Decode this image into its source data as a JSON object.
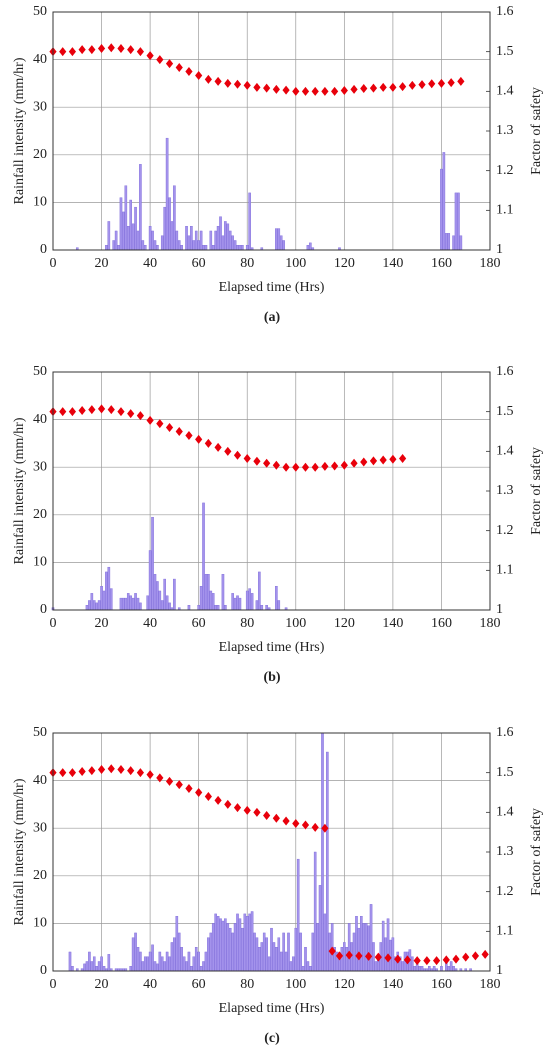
{
  "chart_data": [
    {
      "type": "bar",
      "caption": "(a)",
      "xlabel": "Elapsed time (Hrs)",
      "ylabel": "Rainfall intensity (mm/hr)",
      "y2label": "Factor of safety",
      "xlim": [
        0,
        180
      ],
      "xticks": [
        0,
        20,
        40,
        60,
        80,
        100,
        120,
        140,
        160,
        180
      ],
      "ylim": [
        0,
        50
      ],
      "yticks": [
        0,
        10,
        20,
        30,
        40,
        50
      ],
      "y2lim": [
        1,
        1.6
      ],
      "y2ticks": [
        1,
        1.1,
        1.2,
        1.3,
        1.4,
        1.5,
        1.6
      ],
      "grid": true,
      "series": [
        {
          "type": "bar",
          "color": "#a493ec",
          "x": [
            10,
            22,
            23,
            25,
            26,
            27,
            28,
            29,
            30,
            31,
            32,
            33,
            34,
            35,
            36,
            37,
            38,
            40,
            41,
            42,
            43,
            45,
            46,
            47,
            48,
            49,
            50,
            51,
            52,
            53,
            55,
            56,
            57,
            58,
            59,
            60,
            61,
            62,
            63,
            65,
            66,
            67,
            68,
            69,
            70,
            71,
            72,
            73,
            74,
            75,
            76,
            77,
            78,
            80,
            81,
            82,
            86,
            92,
            93,
            94,
            95,
            105,
            106,
            107,
            118,
            160,
            161,
            162,
            163,
            165,
            166,
            167,
            168
          ],
          "values": [
            0.5,
            1,
            6,
            2,
            4,
            1,
            11,
            8,
            13.5,
            5,
            10.5,
            5.5,
            9,
            4,
            18,
            2,
            1,
            5,
            4,
            2,
            1,
            3,
            9,
            23.5,
            11,
            6,
            13.5,
            4,
            2,
            1,
            5,
            3,
            5,
            2,
            4,
            2,
            4,
            1,
            1,
            4,
            1,
            4,
            5,
            7,
            3,
            6,
            5.5,
            4,
            3,
            2,
            1,
            1,
            1,
            1,
            12,
            0.5,
            0.5,
            4.5,
            4.5,
            3,
            2,
            1,
            1.5,
            0.5,
            0.5,
            17,
            20.5,
            3.5,
            3.5,
            3,
            12,
            12,
            3
          ]
        },
        {
          "type": "scatter",
          "axis": "y2",
          "color": "#e8000b",
          "x": [
            0,
            4,
            8,
            12,
            16,
            20,
            24,
            28,
            32,
            36,
            40,
            44,
            48,
            52,
            56,
            60,
            64,
            68,
            72,
            76,
            80,
            84,
            88,
            92,
            96,
            100,
            104,
            108,
            112,
            116,
            120,
            124,
            128,
            132,
            136,
            140,
            144,
            148,
            152,
            156,
            160,
            164,
            168
          ],
          "values": [
            1.5,
            1.5,
            1.5,
            1.505,
            1.505,
            1.508,
            1.51,
            1.508,
            1.505,
            1.5,
            1.49,
            1.48,
            1.47,
            1.46,
            1.45,
            1.44,
            1.43,
            1.425,
            1.42,
            1.418,
            1.415,
            1.41,
            1.408,
            1.405,
            1.403,
            1.4,
            1.4,
            1.4,
            1.4,
            1.4,
            1.402,
            1.405,
            1.407,
            1.408,
            1.41,
            1.41,
            1.412,
            1.415,
            1.417,
            1.419,
            1.42,
            1.422,
            1.425
          ]
        }
      ]
    },
    {
      "type": "bar",
      "caption": "(b)",
      "xlabel": "Elapsed time (Hrs)",
      "ylabel": "Rainfall intensity (mm/hr)",
      "y2label": "Factor of safety",
      "xlim": [
        0,
        180
      ],
      "xticks": [
        0,
        20,
        40,
        60,
        80,
        100,
        120,
        140,
        160,
        180
      ],
      "ylim": [
        0,
        50
      ],
      "yticks": [
        0,
        10,
        20,
        30,
        40,
        50
      ],
      "y2lim": [
        1,
        1.6
      ],
      "y2ticks": [
        1,
        1.1,
        1.2,
        1.3,
        1.4,
        1.5,
        1.6
      ],
      "grid": true,
      "series": [
        {
          "type": "bar",
          "color": "#a493ec",
          "x": [
            0,
            14,
            15,
            16,
            17,
            18,
            19,
            20,
            21,
            22,
            23,
            24,
            28,
            29,
            30,
            31,
            32,
            33,
            34,
            35,
            36,
            39,
            40,
            41,
            42,
            43,
            44,
            45,
            46,
            47,
            48,
            49,
            50,
            52,
            56,
            60,
            61,
            62,
            63,
            64,
            65,
            66,
            67,
            68,
            70,
            71,
            74,
            75,
            76,
            77,
            80,
            81,
            82,
            84,
            85,
            86,
            88,
            89,
            92,
            93,
            96
          ],
          "values": [
            0.5,
            1,
            2,
            3.5,
            2,
            1.5,
            2,
            5,
            4,
            8,
            9,
            4.5,
            2.5,
            2.5,
            2.5,
            3.5,
            3,
            2.5,
            3.5,
            2.5,
            1.5,
            3,
            12.5,
            19.5,
            7.5,
            6,
            4,
            2,
            6.5,
            3,
            1.5,
            0.5,
            6.5,
            0.5,
            1,
            1,
            5,
            22.5,
            7.5,
            7.5,
            4,
            3.5,
            1,
            1,
            7.5,
            1,
            3.5,
            2.5,
            3,
            2.5,
            4,
            4.5,
            3.5,
            2,
            8,
            1,
            1,
            0.5,
            5,
            2,
            0.5
          ]
        },
        {
          "type": "scatter",
          "axis": "y2",
          "color": "#e8000b",
          "x": [
            0,
            4,
            8,
            12,
            16,
            20,
            24,
            28,
            32,
            36,
            40,
            44,
            48,
            52,
            56,
            60,
            64,
            68,
            72,
            76,
            80,
            84,
            88,
            92,
            96,
            100,
            104,
            108,
            112,
            116,
            120,
            124,
            128,
            132,
            136,
            140,
            144
          ],
          "values": [
            1.5,
            1.5,
            1.5,
            1.503,
            1.505,
            1.507,
            1.505,
            1.5,
            1.495,
            1.49,
            1.478,
            1.47,
            1.46,
            1.45,
            1.44,
            1.43,
            1.42,
            1.41,
            1.4,
            1.39,
            1.382,
            1.375,
            1.37,
            1.365,
            1.36,
            1.36,
            1.36,
            1.36,
            1.362,
            1.363,
            1.365,
            1.37,
            1.373,
            1.376,
            1.378,
            1.38,
            1.382
          ]
        }
      ]
    },
    {
      "type": "bar",
      "caption": "(c)",
      "xlabel": "Elapsed time (Hrs)",
      "ylabel": "Rainfall intensity (mm/hr)",
      "y2label": "Factor of safety",
      "xlim": [
        0,
        180
      ],
      "xticks": [
        0,
        20,
        40,
        60,
        80,
        100,
        120,
        140,
        160,
        180
      ],
      "ylim": [
        0,
        50
      ],
      "yticks": [
        0,
        10,
        20,
        30,
        40,
        50
      ],
      "y2lim": [
        1,
        1.6
      ],
      "y2ticks": [
        1,
        1.1,
        1.2,
        1.3,
        1.4,
        1.5,
        1.6
      ],
      "grid": true,
      "series": [
        {
          "type": "bar",
          "color": "#a493ec",
          "x": [
            7,
            8,
            10,
            12,
            13,
            14,
            15,
            16,
            17,
            18,
            19,
            20,
            21,
            22,
            23,
            24,
            26,
            27,
            28,
            29,
            30,
            32,
            33,
            34,
            35,
            36,
            37,
            38,
            39,
            40,
            41,
            42,
            43,
            44,
            45,
            46,
            47,
            48,
            49,
            50,
            51,
            52,
            53,
            54,
            55,
            56,
            57,
            58,
            59,
            60,
            61,
            62,
            63,
            64,
            65,
            66,
            67,
            68,
            69,
            70,
            71,
            72,
            73,
            74,
            75,
            76,
            77,
            78,
            79,
            80,
            81,
            82,
            83,
            84,
            85,
            86,
            87,
            88,
            89,
            90,
            91,
            92,
            93,
            94,
            95,
            96,
            97,
            98,
            99,
            100,
            101,
            102,
            103,
            104,
            105,
            106,
            107,
            108,
            109,
            110,
            111,
            112,
            113,
            114,
            115,
            116,
            117,
            118,
            119,
            120,
            121,
            122,
            123,
            124,
            125,
            126,
            127,
            128,
            129,
            130,
            131,
            132,
            133,
            134,
            135,
            136,
            137,
            138,
            139,
            140,
            141,
            142,
            143,
            144,
            145,
            146,
            147,
            148,
            149,
            150,
            151,
            152,
            153,
            154,
            155,
            156,
            157,
            158,
            160,
            162,
            163,
            164,
            165,
            166,
            168,
            170,
            172
          ],
          "values": [
            4,
            1,
            0.5,
            0.5,
            1.5,
            2,
            4,
            2,
            3,
            1,
            2,
            3,
            1,
            0.5,
            3.5,
            0.5,
            0.5,
            0.5,
            0.5,
            0.5,
            0.5,
            1,
            7,
            8,
            5,
            4,
            2,
            3,
            3,
            4,
            5.5,
            2,
            1.5,
            4,
            3,
            2,
            4,
            3,
            6,
            7,
            11.5,
            8,
            5,
            3,
            2,
            4,
            1,
            3,
            5,
            4,
            1,
            2,
            4,
            7,
            8,
            10,
            12,
            11.5,
            11,
            10.5,
            11,
            10,
            9,
            8,
            10,
            12,
            11,
            9,
            12,
            11.5,
            12,
            12.5,
            8,
            7,
            5,
            6,
            8,
            7,
            3,
            9,
            6,
            5,
            7,
            4,
            8,
            4,
            8,
            2,
            3,
            9,
            23.5,
            8,
            1,
            5,
            2,
            1,
            8,
            25,
            10,
            18,
            50,
            12,
            46,
            8,
            10,
            5,
            4,
            3,
            5,
            6,
            5,
            10,
            6,
            8,
            11.5,
            9,
            11.5,
            10,
            10,
            9.5,
            14,
            6,
            2,
            3,
            6,
            10.5,
            7,
            11,
            6.5,
            7,
            3,
            4,
            3,
            2,
            4,
            4,
            4.5,
            3,
            1,
            2,
            1,
            1,
            0.5,
            0.5,
            1,
            0.5,
            1,
            0.5,
            1,
            2,
            1,
            2,
            1,
            0.5,
            0.5,
            0.5,
            0.5
          ]
        },
        {
          "type": "scatter",
          "axis": "y2",
          "color": "#e8000b",
          "x": [
            0,
            4,
            8,
            12,
            16,
            20,
            24,
            28,
            32,
            36,
            40,
            44,
            48,
            52,
            56,
            60,
            64,
            68,
            72,
            76,
            80,
            84,
            88,
            92,
            96,
            100,
            104,
            108,
            112,
            115,
            118,
            122,
            126,
            130,
            134,
            138,
            142,
            146,
            150,
            154,
            158,
            162,
            166,
            170,
            174,
            178
          ],
          "values": [
            1.5,
            1.5,
            1.5,
            1.503,
            1.505,
            1.508,
            1.51,
            1.508,
            1.505,
            1.5,
            1.495,
            1.487,
            1.478,
            1.47,
            1.46,
            1.45,
            1.44,
            1.43,
            1.42,
            1.412,
            1.405,
            1.4,
            1.392,
            1.385,
            1.378,
            1.372,
            1.368,
            1.362,
            1.36,
            1.05,
            1.038,
            1.04,
            1.038,
            1.037,
            1.035,
            1.033,
            1.03,
            1.028,
            1.026,
            1.026,
            1.026,
            1.028,
            1.03,
            1.035,
            1.038,
            1.042
          ]
        }
      ]
    }
  ]
}
